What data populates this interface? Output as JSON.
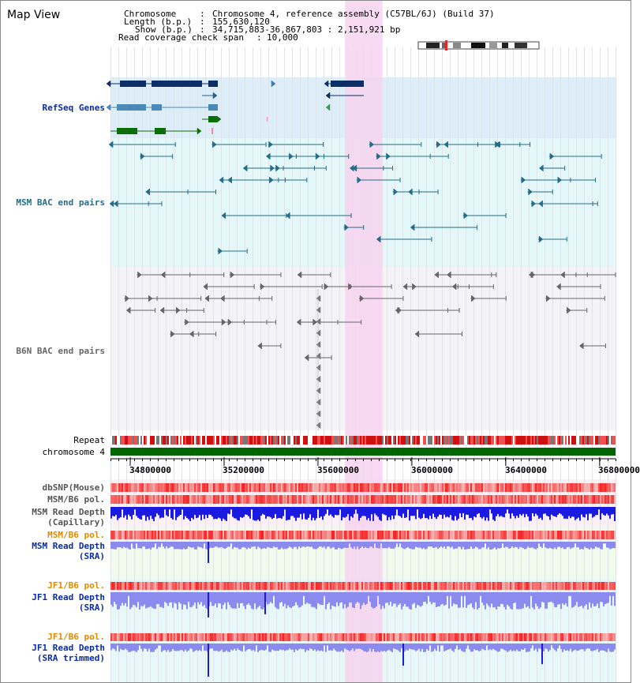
{
  "title": "Map View",
  "header": {
    "chromosome_key": "Chromosome",
    "chromosome_val": "Chromosome 4, reference assembly (C57BL/6J) (Build 37)",
    "length_key": "Length (b.p.)",
    "length_val": "155,630,120",
    "show_key": "Show (b.p.)",
    "show_val": "34,715,883-36,867,803 : 2,151,921 bp",
    "coverage_key": "Read coverage check span",
    "coverage_val": "10,000"
  },
  "view": {
    "start": 34715883,
    "end": 36867803,
    "highlight": [
      35715000,
      35875000
    ]
  },
  "tracks": {
    "refseq": "RefSeq Genes",
    "msm_bac": "MSM BAC end pairs",
    "b6n_bac": "B6N BAC end pairs",
    "repeat": "Repeat",
    "chromosome": "chromosome 4",
    "dbsnp": "dbSNP(Mouse)",
    "msm_b6_pol_1": "MSM/B6 pol.",
    "msm_depth_cap_1": "MSM Read Depth",
    "msm_depth_cap_2": "(Capillary)",
    "msm_b6_pol_2": "MSM/B6 pol.",
    "msm_depth_sra_1": "MSM Read Depth",
    "msm_depth_sra_2": "(SRA)",
    "jf1_b6_pol_1": "JF1/B6 pol.",
    "jf1_depth_sra_1": "JF1 Read Depth",
    "jf1_depth_sra_2": "(SRA)",
    "jf1_b6_pol_2": "JF1/B6 pol.",
    "jf1_depth_trim_1": "JF1 Read Depth",
    "jf1_depth_trim_2": "(SRA trimmed)"
  },
  "axis": {
    "ticks": [
      "34800000",
      "35200000",
      "35600000",
      "36000000",
      "36400000",
      "36800000"
    ],
    "tick_values": [
      34800000,
      35200000,
      35600000,
      36000000,
      36400000,
      36800000
    ]
  },
  "colors": {
    "gene_dark": "#0b2e66",
    "gene_mid": "#4a8ab8",
    "gene_green": "#0a6e0a",
    "msm_pair": "#236d8a",
    "b6n_pair": "#666666",
    "chromosome_bar": "#006600",
    "highlight": "#f7d4f0",
    "depth_blue": "#1a1ae0",
    "depth_light": "#8a8aef"
  }
}
